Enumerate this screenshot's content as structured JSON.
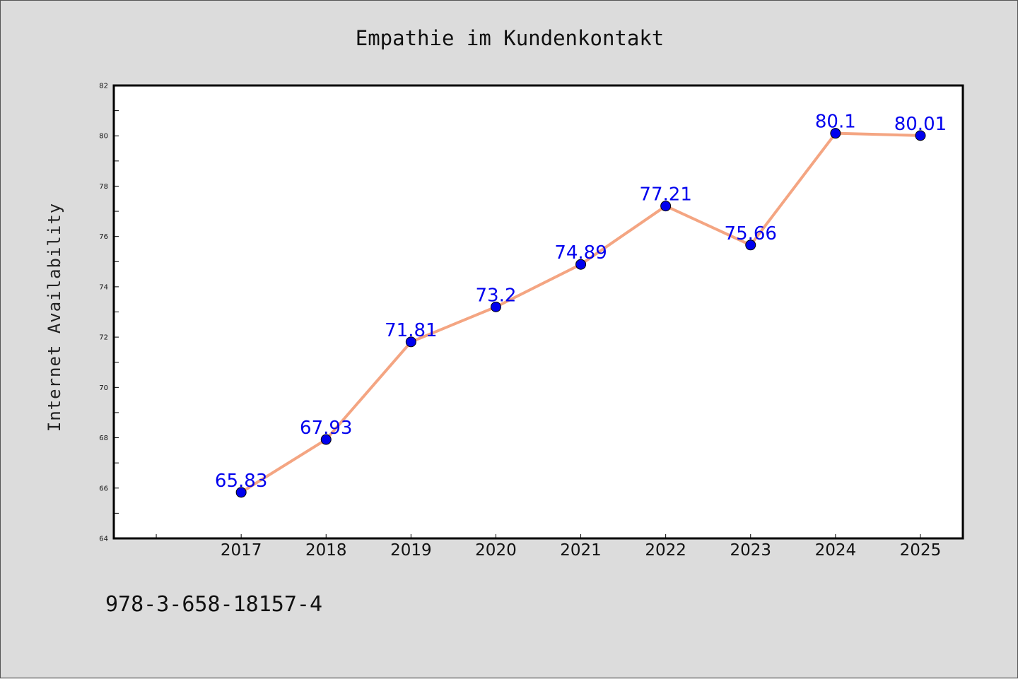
{
  "chart_data": {
    "type": "line",
    "title": "Empathie im Kundenkontakt",
    "xlabel": "",
    "ylabel": "Internet Availability",
    "categories": [
      "2017",
      "2018",
      "2019",
      "2020",
      "2021",
      "2022",
      "2023",
      "2024",
      "2025"
    ],
    "series": [
      {
        "values": [
          65.83,
          67.93,
          71.81,
          73.2,
          74.89,
          77.21,
          75.66,
          80.1,
          80.01
        ],
        "data_labels": [
          "65.83",
          "67.93",
          "71.81",
          "73.2",
          "74.89",
          "77.21",
          "75.66",
          "80.1",
          "80.01"
        ],
        "line_color": "#f4a582",
        "marker_color": "#0000ee"
      }
    ],
    "ylim": [
      64,
      82
    ],
    "yticks": [
      "64",
      "66",
      "68",
      "70",
      "72",
      "74",
      "76",
      "78",
      "80",
      "82"
    ],
    "grid": false,
    "legend": "none"
  },
  "footer_text": "978-3-658-18157-4",
  "colors": {
    "background": "#dcdcdc",
    "plot_background": "#ffffff",
    "line": "#f4a582",
    "marker": "#0000ee",
    "data_label": "#0000ee"
  }
}
